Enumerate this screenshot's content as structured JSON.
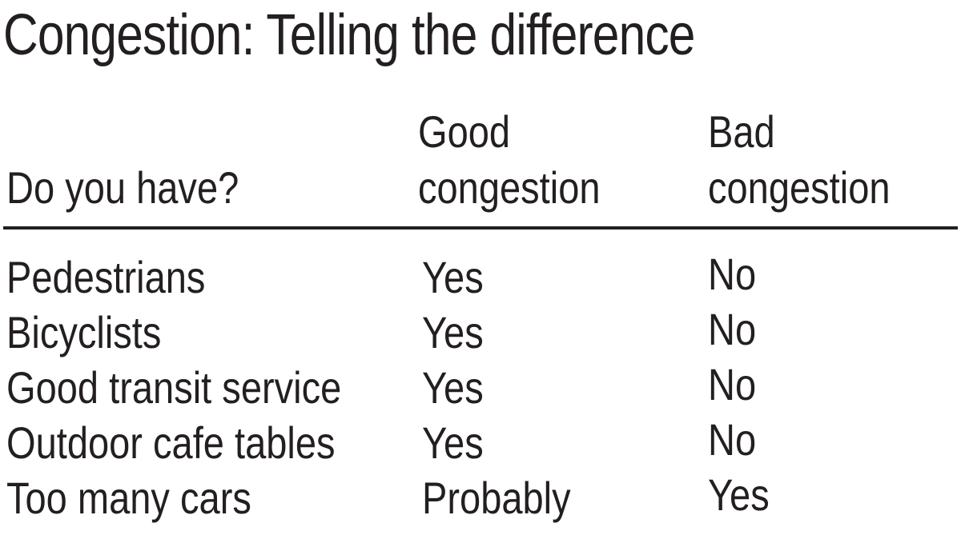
{
  "title": "Congestion: Telling the difference",
  "table": {
    "headers": {
      "question": "Do you have?",
      "good": [
        "Good",
        "congestion"
      ],
      "bad": [
        "Bad",
        "congestion"
      ]
    },
    "rows": [
      {
        "item": "Pedestrians",
        "good": "Yes",
        "bad": "No"
      },
      {
        "item": "Bicyclists",
        "good": "Yes",
        "bad": "No"
      },
      {
        "item": "Good transit service",
        "good": "Yes",
        "bad": "No"
      },
      {
        "item": "Outdoor cafe tables",
        "good": "Yes",
        "bad": "No"
      },
      {
        "item": "Too many cars",
        "good": "Probably",
        "bad": "Yes"
      }
    ]
  }
}
